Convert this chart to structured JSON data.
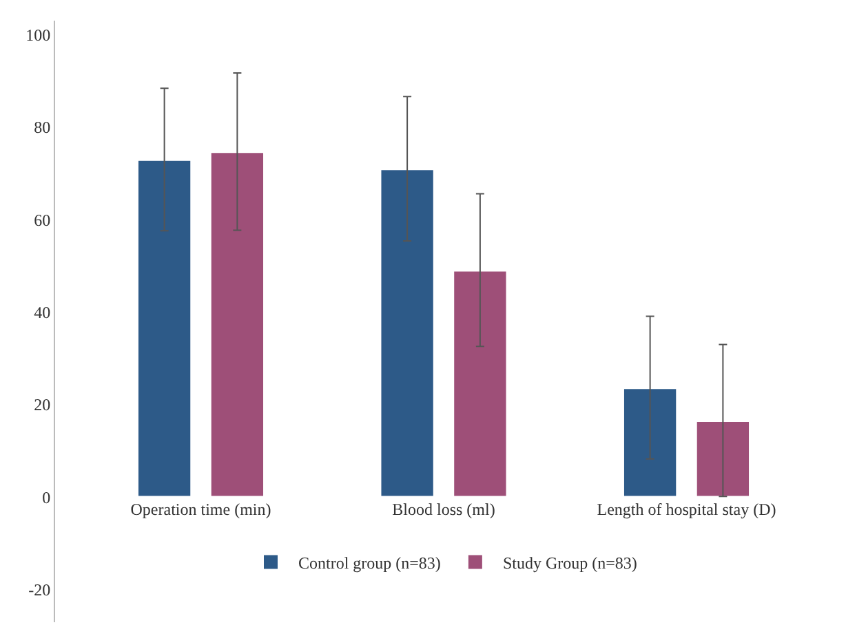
{
  "chart_data": {
    "type": "bar",
    "categories": [
      "Operation time (min)",
      "Blood loss (ml)",
      "Length of hospital stay (D)"
    ],
    "series": [
      {
        "name": "Control group (n=83)",
        "color": "#2d5a88",
        "values": [
          73,
          71,
          23.7
        ],
        "errors": [
          15.4,
          15.6,
          15.4
        ]
      },
      {
        "name": "Study Group (n=83)",
        "color": "#9e4f78",
        "values": [
          74.7,
          49.1,
          16.6
        ],
        "errors": [
          17,
          16.5,
          16.4
        ]
      }
    ],
    "ylim": [
      -27,
      103
    ],
    "yticks": [
      -20,
      0,
      20,
      40,
      60,
      80,
      100
    ],
    "legend": "bottom"
  }
}
